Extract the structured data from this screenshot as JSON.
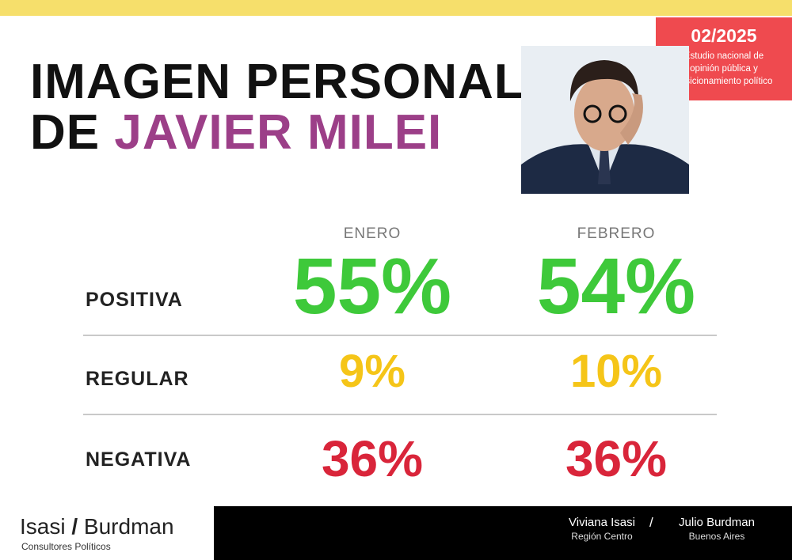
{
  "header": {
    "title_line1": "IMAGEN PERSONAL",
    "title_prefix": "DE",
    "title_name": "JAVIER MILEI"
  },
  "badge": {
    "date": "02/2025",
    "lines": [
      "Estudio nacional de",
      "opinión pública y",
      "posicionamiento político"
    ]
  },
  "table": {
    "columns": [
      "ENERO",
      "FEBRERO"
    ],
    "rows": [
      [
        "POSITIVA",
        "55%",
        "54%"
      ],
      [
        "REGULAR",
        "9%",
        "10%"
      ],
      [
        "NEGATIVA",
        "36%",
        "36%"
      ]
    ]
  },
  "footer": {
    "brand_left": "Isasi",
    "brand_slash": "/",
    "brand_right": "Burdman",
    "brand_sub": "Consultores Políticos",
    "people": [
      {
        "name": "Viviana Isasi",
        "place": "Región Centro"
      },
      {
        "name": "Julio Burdman",
        "place": "Buenos Aires"
      }
    ],
    "separator": "/"
  }
}
